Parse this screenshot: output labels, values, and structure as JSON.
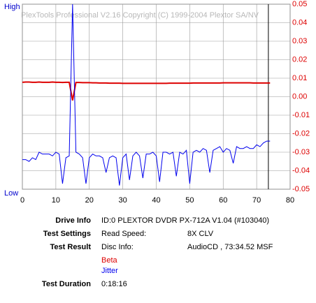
{
  "chart_data": {
    "type": "line",
    "watermark": "PlexTools Professional V2.16 Copyright (C) 1999-2004 Plextor SA/NV",
    "left_axis_labels": [
      "High",
      "Low"
    ],
    "x": [
      0,
      1,
      2,
      3,
      4,
      5,
      6,
      7,
      8,
      9,
      10,
      11,
      12,
      13,
      14,
      15,
      16,
      17,
      18,
      19,
      20,
      21,
      22,
      23,
      24,
      25,
      26,
      27,
      28,
      29,
      30,
      31,
      32,
      33,
      34,
      35,
      36,
      37,
      38,
      39,
      40,
      41,
      42,
      43,
      44,
      45,
      46,
      47,
      48,
      49,
      50,
      51,
      52,
      53,
      54,
      55,
      56,
      57,
      58,
      59,
      60,
      61,
      62,
      63,
      64,
      65,
      66,
      67,
      68,
      69,
      70,
      71,
      72,
      73,
      74
    ],
    "series": [
      {
        "name": "Beta",
        "color": "#dd0000",
        "axis": "y2",
        "values": [
          0.0078,
          0.0079,
          0.0079,
          0.0078,
          0.0078,
          0.0079,
          0.0078,
          0.0078,
          0.0078,
          0.0079,
          0.0078,
          0.0078,
          0.0077,
          0.0078,
          0.0078,
          -0.002,
          0.0077,
          0.0077,
          0.0076,
          0.0076,
          0.0076,
          0.0075,
          0.0075,
          0.0074,
          0.0074,
          0.0074,
          0.0073,
          0.0073,
          0.0073,
          0.0073,
          0.0072,
          0.0072,
          0.0072,
          0.0072,
          0.0072,
          0.0072,
          0.0072,
          0.0072,
          0.0072,
          0.0072,
          0.0072,
          0.0072,
          0.0072,
          0.0072,
          0.0073,
          0.0073,
          0.0073,
          0.0073,
          0.0073,
          0.0073,
          0.0073,
          0.0074,
          0.0074,
          0.0074,
          0.0074,
          0.0074,
          0.0074,
          0.0074,
          0.0074,
          0.0074,
          0.0075,
          0.0075,
          0.0075,
          0.0075,
          0.0075,
          0.0075,
          0.0075,
          0.0075,
          0.0075,
          0.0074,
          0.0074,
          0.0074,
          0.0074,
          0.0074,
          0.0074
        ]
      },
      {
        "name": "Jitter",
        "color": "#0000ee",
        "axis": "y2",
        "values": [
          -0.034,
          -0.034,
          -0.035,
          -0.033,
          -0.034,
          -0.03,
          -0.031,
          -0.031,
          -0.031,
          -0.032,
          -0.03,
          -0.031,
          -0.047,
          -0.033,
          -0.032,
          0.05,
          -0.03,
          -0.031,
          -0.033,
          -0.047,
          -0.033,
          -0.031,
          -0.032,
          -0.032,
          -0.033,
          -0.041,
          -0.033,
          -0.032,
          -0.033,
          -0.048,
          -0.033,
          -0.031,
          -0.045,
          -0.032,
          -0.03,
          -0.032,
          -0.044,
          -0.031,
          -0.031,
          -0.03,
          -0.032,
          -0.046,
          -0.03,
          -0.03,
          -0.031,
          -0.03,
          -0.043,
          -0.03,
          -0.031,
          -0.029,
          -0.047,
          -0.03,
          -0.029,
          -0.03,
          -0.028,
          -0.029,
          -0.041,
          -0.029,
          -0.028,
          -0.027,
          -0.03,
          -0.028,
          -0.029,
          -0.036,
          -0.027,
          -0.028,
          -0.028,
          -0.027,
          -0.028,
          -0.028,
          -0.026,
          -0.027,
          -0.025,
          -0.024,
          -0.024
        ]
      }
    ],
    "xlim": [
      0,
      80
    ],
    "xticks": [
      0,
      10,
      20,
      30,
      40,
      50,
      60,
      70,
      80
    ],
    "y2lim": [
      -0.05,
      0.05
    ],
    "y2ticks": [
      0.05,
      0.04,
      0.03,
      0.02,
      0.01,
      {
        "value": 0,
        "label": "0.00"
      },
      -0.01,
      -0.02,
      -0.03,
      -0.04,
      -0.05
    ],
    "marker_x": 73.5,
    "grid": true
  },
  "info": {
    "drive_info": {
      "label": "Drive Info",
      "value": "ID:0 PLEXTOR DVDR PX-712A V1.04 (#103040)"
    },
    "test_settings": {
      "label": "Test Settings",
      "key": "Read Speed:",
      "value": "8X CLV"
    },
    "test_result": {
      "label": "Test Result",
      "key": "Disc Info:",
      "value": "AudioCD , 73:34.52 MSF"
    },
    "test_duration": {
      "label": "Test Duration",
      "value": "0:18:16"
    }
  }
}
